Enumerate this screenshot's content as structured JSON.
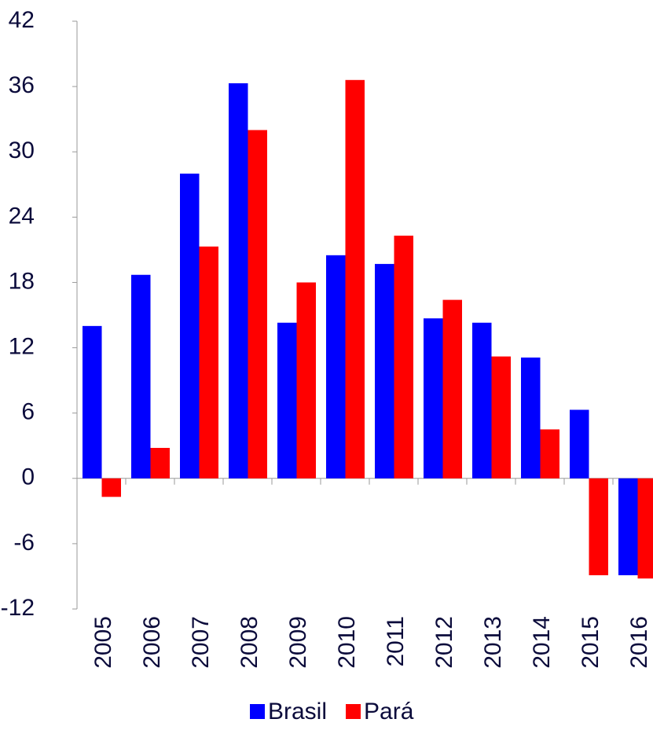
{
  "chart_data": {
    "type": "bar",
    "categories": [
      "2005",
      "2006",
      "2007",
      "2008",
      "2009",
      "2010",
      "2011",
      "2012",
      "2013",
      "2014",
      "2015",
      "2016"
    ],
    "series": [
      {
        "name": "Brasil",
        "color": "#0000ff",
        "values": [
          14.0,
          18.7,
          28.0,
          36.3,
          14.3,
          20.5,
          19.7,
          14.7,
          14.3,
          11.1,
          6.3,
          -8.9
        ]
      },
      {
        "name": "Pará",
        "color": "#ff0000",
        "values": [
          -1.7,
          2.8,
          21.3,
          32.0,
          18.0,
          36.6,
          22.3,
          16.4,
          11.2,
          4.5,
          -8.9,
          -9.2
        ]
      }
    ],
    "ylim": [
      -12,
      42
    ],
    "yticks": [
      -12,
      -6,
      0,
      6,
      12,
      18,
      24,
      30,
      36,
      42
    ],
    "legend": "bottom"
  }
}
